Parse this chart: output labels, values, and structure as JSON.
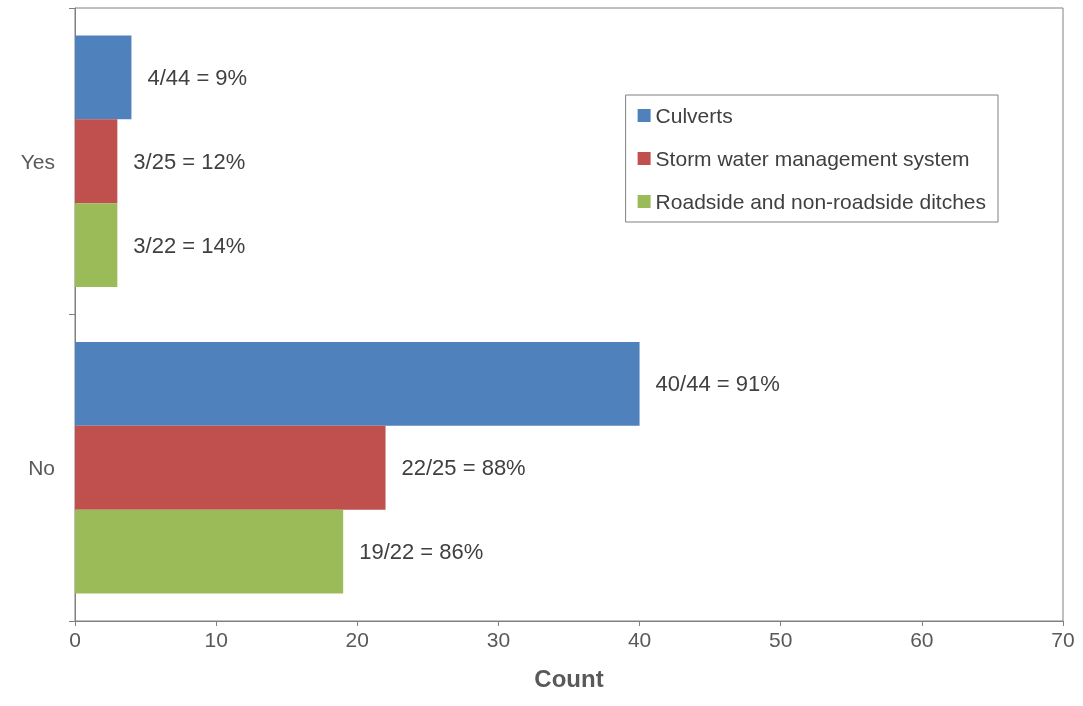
{
  "chart_data": {
    "type": "bar",
    "orientation": "horizontal",
    "xlabel": "Count",
    "categories": [
      "Yes",
      "No"
    ],
    "series": [
      {
        "name": "Culverts",
        "color": "#4f81bd",
        "values": [
          4,
          40
        ],
        "value_labels": [
          "4/44 = 9%",
          "40/44 = 91%"
        ]
      },
      {
        "name": "Storm water management system",
        "color": "#c0504d",
        "values": [
          3,
          22
        ],
        "value_labels": [
          "3/25 = 12%",
          "22/25 = 88%"
        ]
      },
      {
        "name": "Roadside and non-roadside ditches",
        "color": "#9bbb59",
        "values": [
          3,
          19
        ],
        "value_labels": [
          "3/22 = 14%",
          "19/22 = 86%"
        ]
      }
    ],
    "xlim": [
      0,
      70
    ],
    "xticks": [
      0,
      10,
      20,
      30,
      40,
      50,
      60,
      70
    ],
    "grid": false,
    "legend": "top right"
  }
}
